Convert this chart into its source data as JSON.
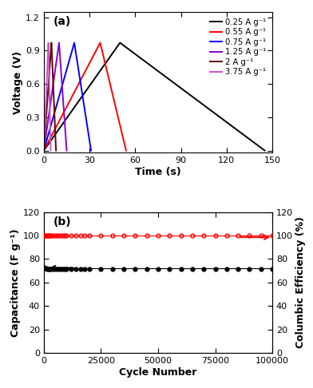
{
  "panel_a": {
    "title": "(a)",
    "xlabel": "Time (s)",
    "ylabel": "Voltage (V)",
    "xlim": [
      0,
      150
    ],
    "ylim": [
      -0.02,
      1.25
    ],
    "xticks": [
      0,
      30,
      60,
      90,
      120,
      150
    ],
    "yticks": [
      0.0,
      0.3,
      0.6,
      0.9,
      1.2
    ],
    "curves": [
      {
        "label": "0.25 A g⁻¹",
        "color": "#000000",
        "charge_time": 50,
        "peak_voltage": 0.97,
        "discharge_end": 145
      },
      {
        "label": "0.55 A g⁻¹",
        "color": "#ff0000",
        "charge_time": 37,
        "peak_voltage": 0.97,
        "discharge_end": 54
      },
      {
        "label": "0.75 A g⁻¹",
        "color": "#0000ff",
        "charge_time": 20,
        "peak_voltage": 0.97,
        "discharge_end": 31
      },
      {
        "label": "1.25 A g⁻¹",
        "color": "#8800cc",
        "charge_time": 10,
        "peak_voltage": 0.97,
        "discharge_end": 15
      },
      {
        "label": "2 A g⁻¹",
        "color": "#660000",
        "charge_time": 5,
        "peak_voltage": 0.97,
        "discharge_end": 8
      },
      {
        "label": "3.75 A g⁻¹",
        "color": "#cc55cc",
        "charge_time": 3,
        "peak_voltage": 0.97,
        "discharge_end": 4.5
      }
    ]
  },
  "panel_b": {
    "title": "(b)",
    "xlabel": "Cycle Number",
    "ylabel_left": "Capacitance (F g⁻¹)",
    "ylabel_right": "Columbic Efficiency (%)",
    "xlim": [
      0,
      100000
    ],
    "ylim_left": [
      0,
      120
    ],
    "ylim_right": [
      0,
      120
    ],
    "xticks": [
      0,
      25000,
      50000,
      75000,
      100000
    ],
    "xticklabels": [
      "0",
      "25000",
      "50000",
      "75000",
      "100000"
    ],
    "yticks_left": [
      0,
      20,
      40,
      60,
      80,
      100,
      120
    ],
    "yticks_right": [
      0,
      20,
      40,
      60,
      80,
      100,
      120
    ],
    "cap_cycles": [
      50,
      200,
      500,
      1000,
      1500,
      2000,
      2500,
      3000,
      4000,
      5000,
      6000,
      7000,
      8000,
      9000,
      10000,
      12000,
      14000,
      16000,
      18000,
      20000,
      25000,
      30000,
      35000,
      40000,
      45000,
      50000,
      55000,
      60000,
      65000,
      70000,
      75000,
      80000,
      85000,
      90000,
      95000,
      100000
    ],
    "cap_values": [
      73,
      72.5,
      72,
      72,
      71.8,
      71.8,
      71.8,
      71.8,
      71.8,
      71.8,
      71.8,
      71.8,
      71.8,
      71.8,
      71.8,
      71.8,
      71.8,
      71.8,
      71.8,
      71.8,
      71.8,
      71.8,
      71.8,
      71.8,
      71.8,
      71.8,
      71.8,
      71.8,
      71.8,
      71.8,
      71.8,
      71.8,
      71.8,
      71.8,
      71.8,
      71.8
    ],
    "eff_cycles": [
      50,
      200,
      500,
      1000,
      1500,
      2000,
      2500,
      3000,
      4000,
      5000,
      6000,
      7000,
      8000,
      9000,
      10000,
      12000,
      14000,
      16000,
      18000,
      20000,
      25000,
      30000,
      35000,
      40000,
      45000,
      50000,
      55000,
      60000,
      65000,
      70000,
      75000,
      80000,
      85000,
      90000,
      95000,
      100000
    ],
    "eff_values": [
      100,
      100,
      100,
      100,
      100,
      100,
      100,
      100,
      100,
      100,
      100,
      100,
      100,
      100,
      100,
      100,
      100,
      100,
      100,
      100,
      100,
      100,
      100,
      100,
      100,
      100,
      100,
      100,
      100,
      100,
      100,
      100,
      100,
      100,
      100,
      100
    ],
    "cap_color": "#000000",
    "eff_color": "#ff0000"
  }
}
